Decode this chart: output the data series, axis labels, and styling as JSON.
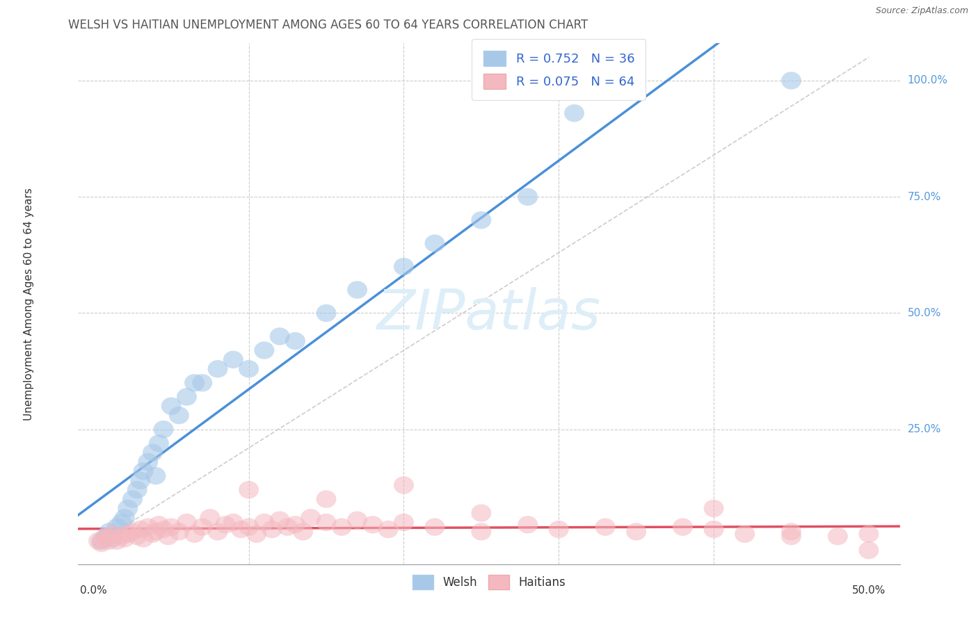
{
  "title": "WELSH VS HAITIAN UNEMPLOYMENT AMONG AGES 60 TO 64 YEARS CORRELATION CHART",
  "source": "Source: ZipAtlas.com",
  "ylabel": "Unemployment Among Ages 60 to 64 years",
  "welsh_R": 0.752,
  "welsh_N": 36,
  "haitian_R": 0.075,
  "haitian_N": 64,
  "welsh_color": "#a8c8e8",
  "haitian_color": "#f4b8c0",
  "welsh_line_color": "#4a90d9",
  "haitian_line_color": "#e05060",
  "diagonal_color": "#cccccc",
  "background_color": "#ffffff",
  "grid_color": "#cccccc",
  "title_color": "#555555",
  "axis_label_color": "#5599dd",
  "legend_text_color": "#3366cc",
  "watermark_color": "#ddeef8",
  "welsh_x": [
    0.005,
    0.008,
    0.01,
    0.012,
    0.015,
    0.018,
    0.02,
    0.022,
    0.025,
    0.028,
    0.03,
    0.032,
    0.035,
    0.038,
    0.04,
    0.042,
    0.045,
    0.05,
    0.055,
    0.06,
    0.065,
    0.07,
    0.08,
    0.09,
    0.1,
    0.11,
    0.12,
    0.13,
    0.15,
    0.17,
    0.2,
    0.22,
    0.25,
    0.28,
    0.31,
    0.45
  ],
  "welsh_y": [
    0.01,
    0.02,
    0.03,
    0.015,
    0.04,
    0.05,
    0.06,
    0.08,
    0.1,
    0.12,
    0.14,
    0.16,
    0.18,
    0.2,
    0.15,
    0.22,
    0.25,
    0.3,
    0.28,
    0.32,
    0.35,
    0.35,
    0.38,
    0.4,
    0.38,
    0.42,
    0.45,
    0.44,
    0.5,
    0.55,
    0.6,
    0.65,
    0.7,
    0.75,
    0.93,
    1.0
  ],
  "haitian_x": [
    0.003,
    0.005,
    0.007,
    0.009,
    0.01,
    0.012,
    0.015,
    0.018,
    0.02,
    0.022,
    0.025,
    0.028,
    0.03,
    0.032,
    0.035,
    0.038,
    0.04,
    0.042,
    0.045,
    0.048,
    0.05,
    0.055,
    0.06,
    0.065,
    0.07,
    0.075,
    0.08,
    0.085,
    0.09,
    0.095,
    0.1,
    0.105,
    0.11,
    0.115,
    0.12,
    0.125,
    0.13,
    0.135,
    0.14,
    0.15,
    0.16,
    0.17,
    0.18,
    0.19,
    0.2,
    0.22,
    0.25,
    0.28,
    0.3,
    0.33,
    0.35,
    0.38,
    0.4,
    0.42,
    0.45,
    0.48,
    0.5,
    0.1,
    0.15,
    0.2,
    0.25,
    0.4,
    0.45,
    0.5
  ],
  "haitian_y": [
    0.01,
    0.005,
    0.015,
    0.02,
    0.01,
    0.025,
    0.01,
    0.02,
    0.015,
    0.025,
    0.03,
    0.02,
    0.035,
    0.015,
    0.04,
    0.025,
    0.03,
    0.045,
    0.035,
    0.02,
    0.04,
    0.03,
    0.05,
    0.025,
    0.04,
    0.06,
    0.03,
    0.045,
    0.05,
    0.035,
    0.04,
    0.025,
    0.05,
    0.035,
    0.055,
    0.04,
    0.045,
    0.03,
    0.06,
    0.05,
    0.04,
    0.055,
    0.045,
    0.035,
    0.05,
    0.04,
    0.03,
    0.045,
    0.035,
    0.04,
    0.03,
    0.04,
    0.035,
    0.025,
    0.03,
    0.02,
    0.025,
    0.12,
    0.1,
    0.13,
    0.07,
    0.08,
    0.02,
    -0.01
  ],
  "xlim": [
    0.0,
    0.5
  ],
  "ylim": [
    0.0,
    1.05
  ],
  "xtick_positions": [
    0.0,
    0.1,
    0.2,
    0.3,
    0.4,
    0.5
  ],
  "ytick_positions": [
    0.25,
    0.5,
    0.75,
    1.0
  ],
  "ytick_labels": [
    "25.0%",
    "50.0%",
    "75.0%",
    "100.0%"
  ]
}
